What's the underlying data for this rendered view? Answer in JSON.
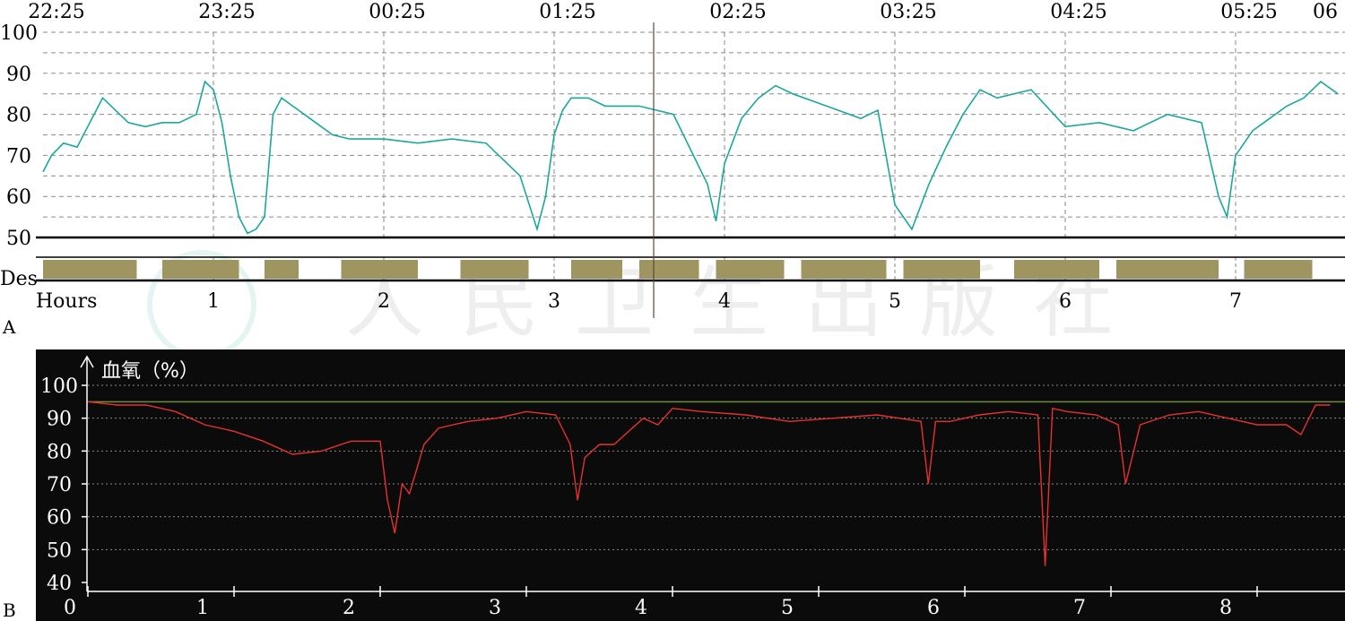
{
  "chart_data": [
    {
      "panel": "A",
      "type": "line",
      "series_color": "#1aa89a",
      "des_color": "#9e9560",
      "time_labels": [
        "22:25",
        "23:25",
        "00:25",
        "01:25",
        "02:25",
        "03:25",
        "04:25",
        "05:25",
        "06"
      ],
      "y_ticks": [
        100,
        90,
        80,
        70,
        60,
        50
      ],
      "ylim": [
        50,
        100
      ],
      "des_label": "Des",
      "hours_label": "Hours",
      "hour_ticks": [
        "1",
        "2",
        "3",
        "4",
        "5",
        "6",
        "7"
      ],
      "xlim_hours": [
        0,
        7.6
      ],
      "x_hours": [
        0,
        0.05,
        0.12,
        0.2,
        0.35,
        0.45,
        0.5,
        0.6,
        0.7,
        0.8,
        0.9,
        0.95,
        1.0,
        1.05,
        1.1,
        1.15,
        1.2,
        1.25,
        1.3,
        1.35,
        1.4,
        1.5,
        1.6,
        1.7,
        1.8,
        1.9,
        2.0,
        2.2,
        2.4,
        2.6,
        2.8,
        2.9,
        2.95,
        3.0,
        3.05,
        3.1,
        3.2,
        3.3,
        3.5,
        3.7,
        3.9,
        3.95,
        4.0,
        4.1,
        4.2,
        4.3,
        4.4,
        4.6,
        4.8,
        4.9,
        5.0,
        5.1,
        5.2,
        5.3,
        5.4,
        5.5,
        5.6,
        5.8,
        6.0,
        6.2,
        6.4,
        6.6,
        6.8,
        6.9,
        6.95,
        7.0,
        7.1,
        7.2,
        7.3,
        7.4,
        7.5,
        7.6
      ],
      "values": [
        66,
        70,
        73,
        72,
        84,
        80,
        78,
        77,
        78,
        78,
        80,
        88,
        86,
        78,
        65,
        55,
        51,
        52,
        55,
        80,
        84,
        81,
        78,
        75,
        74,
        74,
        74,
        73,
        74,
        73,
        65,
        52,
        60,
        75,
        81,
        84,
        84,
        82,
        82,
        80,
        63,
        54,
        68,
        79,
        84,
        87,
        85,
        82,
        79,
        81,
        58,
        52,
        63,
        72,
        80,
        86,
        84,
        86,
        77,
        78,
        76,
        80,
        78,
        60,
        55,
        70,
        76,
        79,
        82,
        84,
        88,
        85
      ],
      "des_blocks": [
        [
          0.0,
          0.55
        ],
        [
          0.7,
          1.15
        ],
        [
          1.3,
          1.5
        ],
        [
          1.75,
          2.2
        ],
        [
          2.45,
          2.85
        ],
        [
          3.1,
          3.4
        ],
        [
          3.5,
          3.85
        ],
        [
          3.95,
          4.35
        ],
        [
          4.45,
          4.95
        ],
        [
          5.05,
          5.5
        ],
        [
          5.7,
          6.2
        ],
        [
          6.3,
          6.9
        ],
        [
          7.05,
          7.45
        ]
      ]
    },
    {
      "panel": "B",
      "type": "line",
      "series_color": "#e8312e",
      "ref_line_color": "#6b8f2a",
      "ylabel": "血氧（%）",
      "y_ticks": [
        100,
        90,
        80,
        70,
        60,
        50,
        40
      ],
      "ylim": [
        40,
        100
      ],
      "reference_value": 95,
      "x_ticks": [
        "0",
        "1",
        "2",
        "3",
        "4",
        "5",
        "6",
        "7",
        "8"
      ],
      "xlim_hours": [
        0,
        8.5
      ],
      "x_hours": [
        0,
        0.2,
        0.4,
        0.6,
        0.8,
        1.0,
        1.2,
        1.4,
        1.6,
        1.8,
        2.0,
        2.05,
        2.1,
        2.15,
        2.2,
        2.3,
        2.4,
        2.5,
        2.6,
        2.8,
        3.0,
        3.2,
        3.3,
        3.35,
        3.4,
        3.5,
        3.6,
        3.8,
        3.9,
        4.0,
        4.2,
        4.5,
        4.8,
        5.1,
        5.4,
        5.7,
        5.75,
        5.8,
        5.9,
        6.1,
        6.3,
        6.5,
        6.55,
        6.6,
        6.7,
        6.9,
        7.05,
        7.1,
        7.2,
        7.4,
        7.6,
        7.8,
        8.0,
        8.2,
        8.3,
        8.4,
        8.5
      ],
      "values": [
        95,
        94,
        94,
        92,
        88,
        86,
        83,
        79,
        80,
        83,
        83,
        65,
        55,
        70,
        67,
        82,
        87,
        88,
        89,
        90,
        92,
        91,
        82,
        65,
        78,
        82,
        82,
        90,
        88,
        93,
        92,
        91,
        89,
        90,
        91,
        89,
        70,
        89,
        89,
        91,
        92,
        91,
        45,
        93,
        92,
        91,
        88,
        70,
        88,
        91,
        92,
        90,
        88,
        88,
        85,
        94,
        94
      ]
    }
  ],
  "panel_labels": [
    "A",
    "B"
  ],
  "watermark": "人民卫生出版社"
}
